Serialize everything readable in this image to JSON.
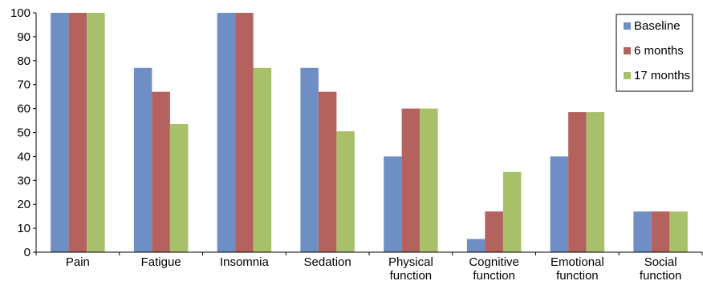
{
  "chart_data": {
    "type": "bar",
    "categories": [
      [
        "Pain"
      ],
      [
        "Fatigue"
      ],
      [
        "Insomnia"
      ],
      [
        "Sedation"
      ],
      [
        "Physical",
        "function"
      ],
      [
        "Cognitive",
        "function"
      ],
      [
        "Emotional",
        "function"
      ],
      [
        "Social",
        "function"
      ]
    ],
    "series": [
      {
        "name": "Baseline",
        "color": "#6f8fc4",
        "values": [
          100,
          77,
          100,
          77,
          40,
          5.5,
          40,
          17
        ]
      },
      {
        "name": "6 months",
        "color": "#b4625e",
        "values": [
          100,
          67,
          100,
          67,
          60,
          17,
          58.5,
          17
        ]
      },
      {
        "name": "17 months",
        "color": "#a9c06a",
        "values": [
          100,
          53.5,
          77,
          50.5,
          60,
          33.5,
          58.5,
          17
        ]
      }
    ],
    "ylim": [
      0,
      100
    ],
    "yticks": [
      0,
      10,
      20,
      30,
      40,
      50,
      60,
      70,
      80,
      90,
      100
    ],
    "grid": false,
    "legend_position": "top-right"
  }
}
